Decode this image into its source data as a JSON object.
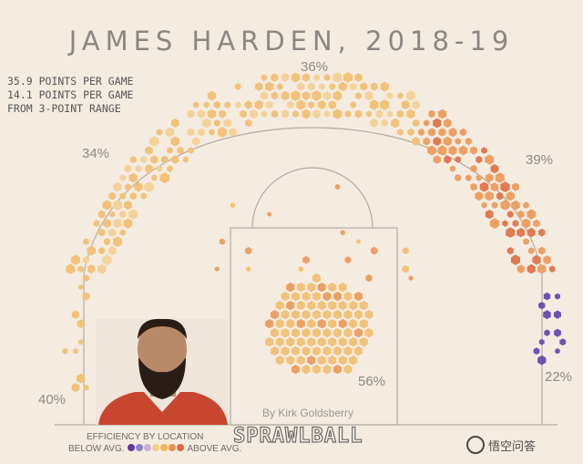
{
  "title": "JAMES HARDEN, 2018-19",
  "stats": [
    "35.9 POINTS PER GAME",
    "14.1 POINTS PER GAME",
    "FROM 3-POINT RANGE"
  ],
  "credit": "By Kirk Goldsberry",
  "brand": "SPRAWLBALL",
  "legend": {
    "title": "EFFICIENCY BY LOCATION",
    "below": "BELOW AVG.",
    "above": "ABOVE AVG.",
    "colors": [
      "#5d3a9b",
      "#8f7fd0",
      "#c6b0d8",
      "#f0cf8e",
      "#f5b25a",
      "#ec8f47",
      "#de6544"
    ]
  },
  "watermark": "悟空问答",
  "chart_data": {
    "type": "heatmap",
    "title": "JAMES HARDEN, 2018-19",
    "zones": [
      {
        "label": "36%",
        "value": 36
      },
      {
        "label": "34%",
        "value": 34
      },
      {
        "label": "39%",
        "value": 39
      },
      {
        "label": "40%",
        "value": 40
      },
      {
        "label": "56%",
        "value": 56
      },
      {
        "label": "22%",
        "value": 22
      }
    ]
  }
}
